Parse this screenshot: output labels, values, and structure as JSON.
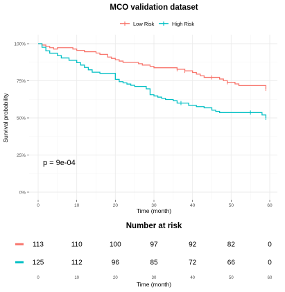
{
  "chart_data": [
    {
      "type": "line",
      "subtype": "kaplan-meier",
      "title": "MCO validation dataset",
      "xlabel": "Time (month)",
      "ylabel": "Survival probability",
      "xlim": [
        0,
        60
      ],
      "ylim": [
        0,
        1
      ],
      "xticks": [
        "0",
        "10",
        "20",
        "30",
        "40",
        "50",
        "60"
      ],
      "yticks": [
        "0%",
        "25%",
        "50%",
        "75%",
        "100%"
      ],
      "grid": true,
      "legend_position": "top",
      "annotation": "p = 9e-04",
      "series": [
        {
          "name": "Low Risk",
          "color": "#F8766D",
          "x": [
            0,
            1,
            2,
            3,
            4,
            5,
            9,
            10,
            12,
            15,
            16,
            18,
            19,
            20,
            21,
            22,
            26,
            27,
            28,
            29,
            30,
            31,
            36,
            38,
            40,
            41,
            42,
            43,
            44,
            46,
            47,
            48,
            49,
            51,
            52,
            53,
            56,
            57,
            59
          ],
          "y": [
            1.0,
            0.991,
            0.982,
            0.973,
            0.964,
            0.973,
            0.964,
            0.955,
            0.946,
            0.937,
            0.928,
            0.91,
            0.901,
            0.892,
            0.883,
            0.874,
            0.865,
            0.856,
            0.856,
            0.847,
            0.838,
            0.838,
            0.828,
            0.817,
            0.806,
            0.795,
            0.784,
            0.773,
            0.773,
            0.773,
            0.762,
            0.751,
            0.74,
            0.729,
            0.718,
            0.718,
            0.718,
            0.718,
            0.696
          ],
          "censored_x": [
            36,
            38,
            45,
            49,
            59
          ]
        },
        {
          "name": "High Risk",
          "color": "#00BFC4",
          "x": [
            0,
            1,
            2,
            3,
            5,
            6,
            8,
            10,
            11,
            12,
            13,
            14,
            15,
            16,
            18,
            20,
            21,
            22,
            23,
            24,
            25,
            26,
            28,
            29,
            30,
            31,
            32,
            33,
            35,
            36,
            38,
            39,
            41,
            43,
            45,
            46,
            47,
            48,
            49,
            58,
            59
          ],
          "y": [
            1.0,
            0.976,
            0.952,
            0.936,
            0.92,
            0.904,
            0.888,
            0.872,
            0.856,
            0.84,
            0.824,
            0.808,
            0.808,
            0.8,
            0.8,
            0.76,
            0.744,
            0.736,
            0.728,
            0.72,
            0.712,
            0.712,
            0.696,
            0.656,
            0.648,
            0.64,
            0.632,
            0.624,
            0.616,
            0.6,
            0.6,
            0.584,
            0.576,
            0.568,
            0.552,
            0.544,
            0.536,
            0.536,
            0.536,
            0.52,
            0.5
          ],
          "censored_x": [
            37,
            55,
            59
          ]
        }
      ]
    },
    {
      "type": "table",
      "title": "Number at risk",
      "xlabel": "Time (month)",
      "xticks": [
        "0",
        "10",
        "20",
        "30",
        "40",
        "50",
        "60"
      ],
      "rows": [
        {
          "group": "Low Risk",
          "color": "#F8766D",
          "values": [
            "113",
            "110",
            "100",
            "97",
            "92",
            "82",
            "0"
          ]
        },
        {
          "group": "High Risk",
          "color": "#00BFC4",
          "values": [
            "125",
            "112",
            "96",
            "85",
            "72",
            "66",
            "0"
          ]
        }
      ]
    }
  ]
}
